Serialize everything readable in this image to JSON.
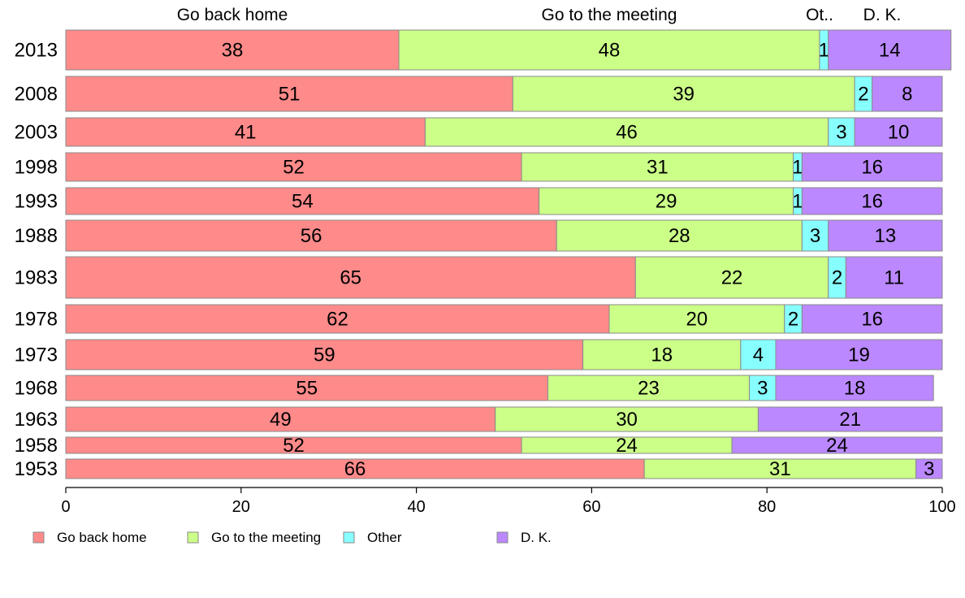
{
  "chart_data": {
    "type": "bar",
    "orientation": "horizontal",
    "stacked": true,
    "title": "",
    "xlabel": "",
    "ylabel": "",
    "xlim": [
      0,
      100
    ],
    "x_ticks": [
      0,
      20,
      40,
      60,
      80,
      100
    ],
    "categories": [
      "2013",
      "2008",
      "2003",
      "1998",
      "1993",
      "1988",
      "1983",
      "1978",
      "1973",
      "1968",
      "1963",
      "1958",
      "1953"
    ],
    "series": [
      {
        "name": "Go back home",
        "color": "#FF8A8A",
        "values": [
          38,
          51,
          41,
          52,
          54,
          56,
          65,
          62,
          59,
          55,
          49,
          52,
          66
        ]
      },
      {
        "name": "Go to the meeting",
        "color": "#CCFF88",
        "values": [
          48,
          39,
          46,
          31,
          29,
          28,
          22,
          20,
          18,
          23,
          30,
          24,
          31
        ]
      },
      {
        "name": "Other",
        "color": "#88FFFF",
        "values": [
          1,
          2,
          3,
          1,
          1,
          3,
          2,
          2,
          4,
          3,
          0,
          0,
          0
        ]
      },
      {
        "name": "D. K.",
        "color": "#BB88FF",
        "values": [
          14,
          8,
          10,
          16,
          16,
          13,
          11,
          16,
          19,
          18,
          21,
          24,
          3
        ]
      }
    ],
    "column_headers": [
      "Go back home",
      "Go to the meeting",
      "Ot..",
      "D. K."
    ],
    "legend": [
      "Go back home",
      "Go to the meeting",
      "Other",
      "D. K."
    ],
    "legend_position": "bottom-left",
    "grid": false
  }
}
